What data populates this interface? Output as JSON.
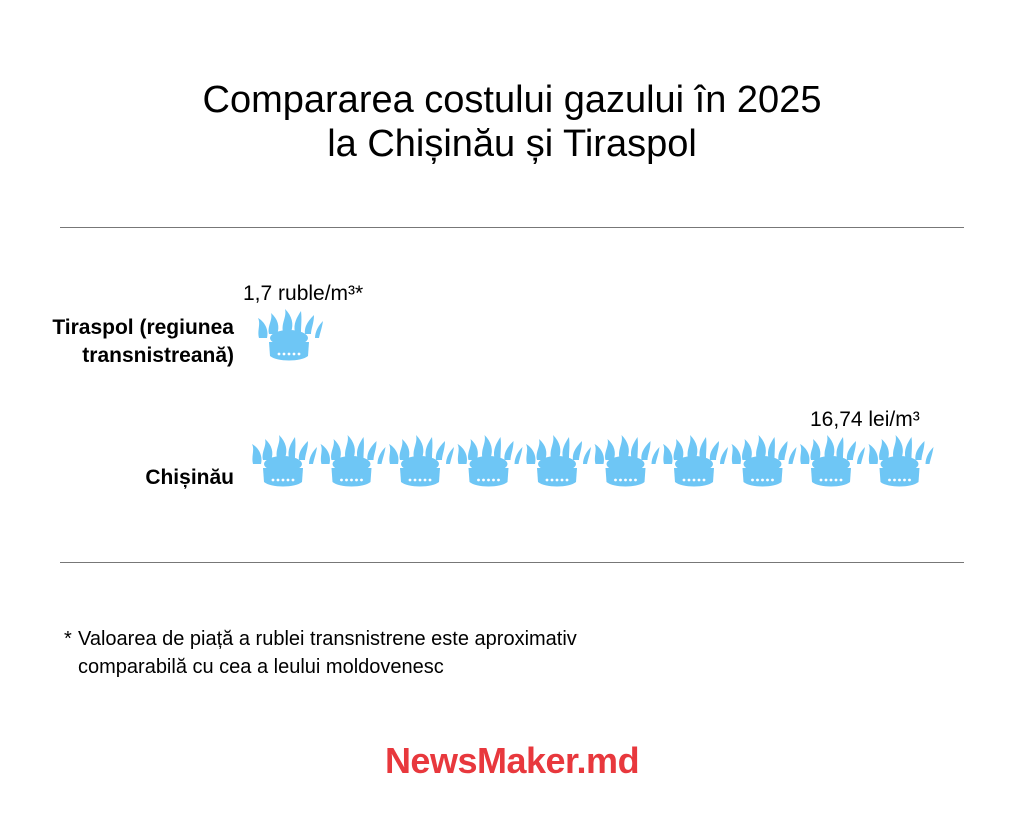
{
  "title": {
    "line1": "Compararea costului gazului în 2025",
    "line2": "la Chișinău și Tiraspol"
  },
  "chart_data": {
    "type": "pictogram",
    "unit_icon": "gas-burner-icon",
    "icon_color": "#6ec6f5",
    "rows": [
      {
        "label_line1": "Tiraspol (regiunea",
        "label_line2": "transnistreană)",
        "value_label": "1,7 ruble/m³*",
        "value": 1.7,
        "icon_count": 1
      },
      {
        "label_line1": "Chișinău",
        "value_label": "16,74 lei/m³",
        "value": 16.74,
        "icon_count": 10
      }
    ]
  },
  "footnote": {
    "marker": "*",
    "line1": "Valoarea de piață a rublei transnistrene este aproximativ",
    "line2": "comparabilă cu cea a leului moldovenesc"
  },
  "logo": {
    "text": "NewsMaker.md",
    "color": "#e8383d"
  }
}
